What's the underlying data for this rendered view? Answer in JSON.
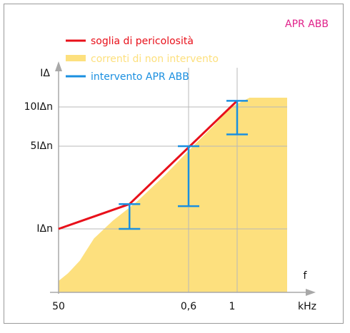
{
  "chart_data": {
    "type": "line",
    "title": "",
    "corner_label": "APR ABB",
    "xlabel": "f",
    "xunit": "kHz",
    "ylabel": "IΔ",
    "x_ticks": [
      "50",
      "0,6",
      "1"
    ],
    "y_ticks": [
      "IΔn",
      "5IΔn",
      "10IΔn"
    ],
    "grid": true,
    "legend_position": "top-left",
    "colors": {
      "threshold": "#e8101a",
      "non_trip": "#fde07e",
      "trip": "#1a8fe0",
      "corner_label": "#e0218a"
    },
    "series": [
      {
        "name": "soglia di pericolosità",
        "kind": "line",
        "points": [
          [
            0.05,
            1
          ],
          [
            0.35,
            2.2
          ],
          [
            1.0,
            11
          ]
        ]
      },
      {
        "name": "correnti di non intervento",
        "kind": "area",
        "points": [
          [
            0.05,
            0.18
          ],
          [
            0.09,
            0.3
          ],
          [
            0.14,
            0.5
          ],
          [
            0.2,
            0.85
          ],
          [
            0.28,
            1.4
          ],
          [
            0.38,
            2.3
          ],
          [
            0.5,
            3.6
          ],
          [
            0.65,
            5.2
          ],
          [
            0.8,
            7.5
          ],
          [
            0.95,
            10
          ],
          [
            1.1,
            11.5
          ],
          [
            1.4,
            11.5
          ]
        ]
      },
      {
        "name": "intervento APR ABB",
        "kind": "interval",
        "ranges": [
          {
            "x": 0.35,
            "low": 1,
            "high": 2.2
          },
          {
            "x": 0.6,
            "low": 2.1,
            "high": 5
          },
          {
            "x": 1.0,
            "low": 6.5,
            "high": 11
          }
        ]
      }
    ]
  }
}
